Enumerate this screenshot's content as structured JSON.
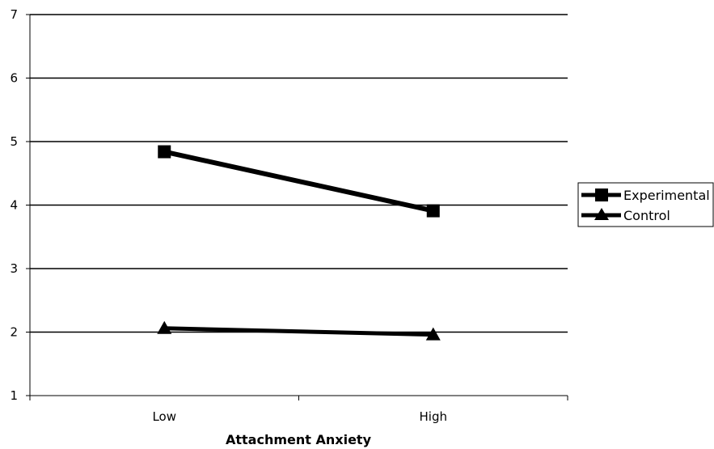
{
  "chart_data": {
    "type": "line",
    "categories": [
      "Low",
      "High"
    ],
    "series": [
      {
        "name": "Experimental",
        "marker": "square",
        "values": [
          4.84,
          3.91
        ]
      },
      {
        "name": "Control",
        "marker": "triangle",
        "values": [
          2.06,
          1.96
        ]
      }
    ],
    "xlabel": "Attachment Anxiety",
    "ylabel": "",
    "ylim": [
      1,
      7
    ],
    "yticks": [
      "1",
      "2",
      "3",
      "4",
      "5",
      "6",
      "7"
    ],
    "grid": true,
    "legend_position": "right",
    "line_color": "#000000"
  }
}
